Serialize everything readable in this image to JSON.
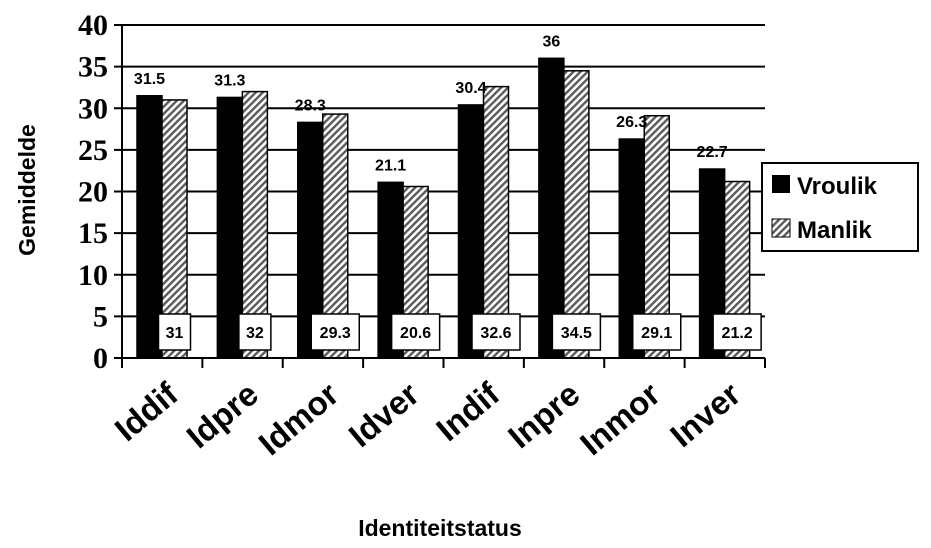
{
  "chart_data": {
    "type": "bar",
    "title": "",
    "xlabel": "Identiteitstatus",
    "ylabel": "Gemiddelde",
    "ylim": [
      0,
      40
    ],
    "yticks": [
      0,
      5,
      10,
      15,
      20,
      25,
      30,
      35,
      40
    ],
    "categories": [
      "Iddif",
      "Idpre",
      "Idmor",
      "Idver",
      "Indif",
      "Inpre",
      "Inmor",
      "Inver"
    ],
    "series": [
      {
        "name": "Vroulik",
        "values": [
          31.5,
          31.3,
          28.3,
          21.1,
          30.4,
          36,
          26.3,
          22.7
        ],
        "color": "#000000",
        "label_position": "above"
      },
      {
        "name": "Manlik",
        "values": [
          31,
          32,
          29.3,
          20.6,
          32.6,
          34.5,
          29.1,
          21.2
        ],
        "color": "#9a9a9a",
        "pattern": "diagonal-hatch",
        "label_position": "boxed-bottom"
      }
    ],
    "grid": "horizontal",
    "legend": "right"
  }
}
